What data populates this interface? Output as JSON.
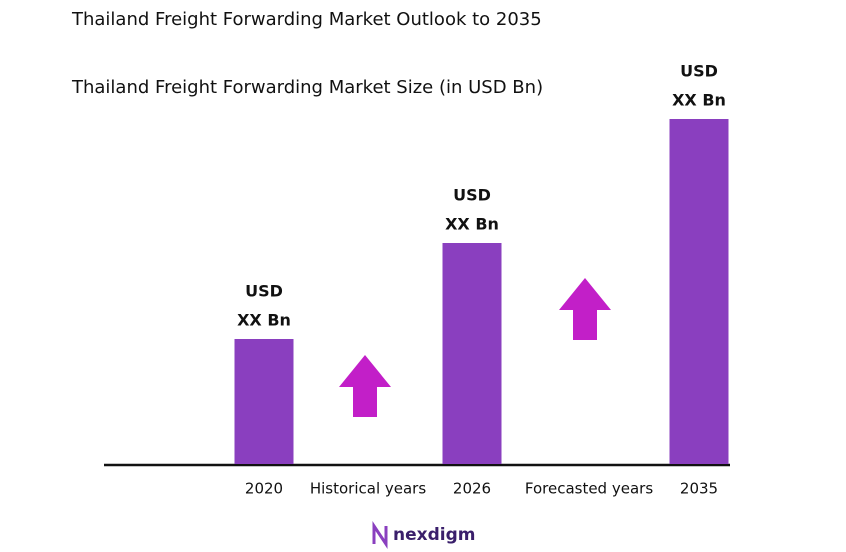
{
  "chart_data": {
    "type": "bar",
    "title": "Thailand Freight Forwarding Market Outlook to 2035",
    "subtitle": "Thailand Freight Forwarding Market Size (in USD Bn)",
    "categories": [
      "2020",
      "2026",
      "2035"
    ],
    "values": [
      125,
      221,
      345
    ],
    "value_labels": [
      [
        "USD",
        "XX Bn"
      ],
      [
        "USD",
        "XX Bn"
      ],
      [
        "USD",
        "XX Bn"
      ]
    ],
    "annotations": [
      "Historical years",
      "Forecasted years"
    ],
    "color": "#8a3fbf",
    "arrow_color": "#c21fc8",
    "logo": "nexdigm"
  }
}
